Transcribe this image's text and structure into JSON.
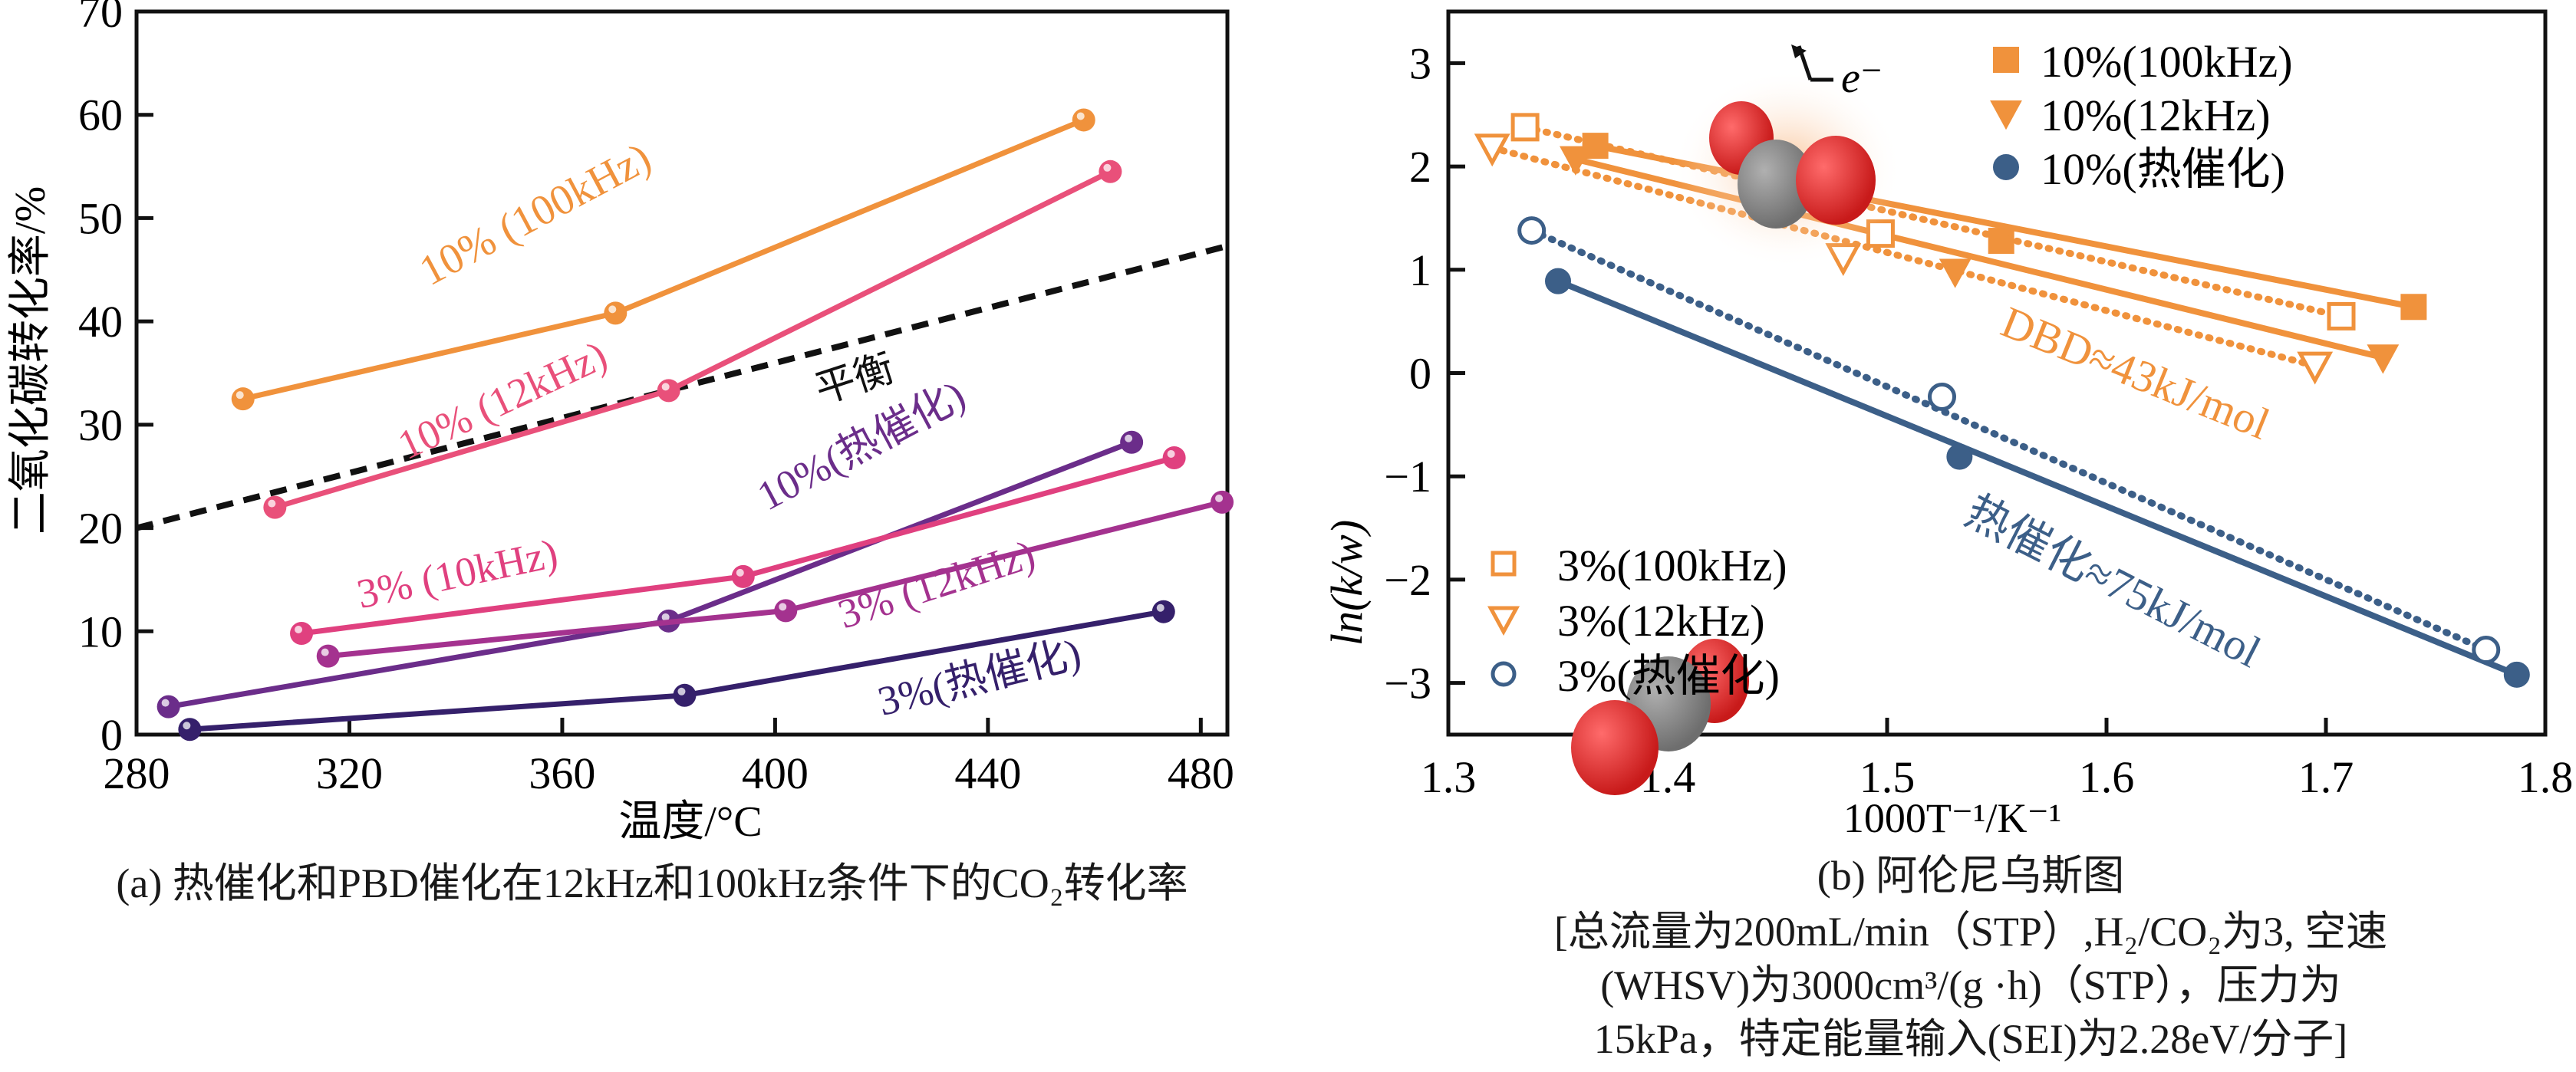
{
  "chart_data": [
    {
      "id": "a",
      "type": "line",
      "title": "",
      "caption": "(a) 热催化和PBD催化在12kHz和100kHz条件下的CO₂转化率",
      "xlabel": "温度/°C",
      "ylabel": "二氧化碳转化率/%",
      "xlim": [
        280,
        485
      ],
      "ylim": [
        0,
        70
      ],
      "xticks": [
        280,
        320,
        360,
        400,
        440,
        480
      ],
      "yticks": [
        0,
        10,
        20,
        30,
        40,
        50,
        60,
        70
      ],
      "grid": false,
      "series": [
        {
          "name": "10% (100kHz)",
          "color": "#f0923c",
          "x": [
            300,
            370,
            458
          ],
          "y": [
            32.5,
            40.8,
            59.5
          ]
        },
        {
          "name": "10% (12kHz)",
          "color": "#e9507a",
          "x": [
            306,
            380,
            463
          ],
          "y": [
            22,
            33.3,
            54.5
          ]
        },
        {
          "name": "10%(热催化)",
          "color": "#6b2d8a",
          "x": [
            286,
            380,
            467
          ],
          "y": [
            2.7,
            11,
            28.3
          ]
        },
        {
          "name": "3% (10kHz)",
          "color": "#e0407f",
          "x": [
            311,
            394,
            475
          ],
          "y": [
            9.8,
            15.3,
            26.8
          ]
        },
        {
          "name": "3% (12kHz)",
          "color": "#a4328f",
          "x": [
            316,
            402,
            484
          ],
          "y": [
            7.6,
            12,
            22.5
          ]
        },
        {
          "name": "3%(热催化)",
          "color": "#35206b",
          "x": [
            290,
            383,
            473
          ],
          "y": [
            0.5,
            3.8,
            11.9
          ]
        }
      ],
      "equilibrium": {
        "name": "平衡",
        "x": [
          280,
          485
        ],
        "y": [
          20,
          47.3
        ],
        "color": "#111111"
      },
      "annotations": [
        {
          "text": "10% (100kHz)",
          "series": 0
        },
        {
          "text": "10% (12kHz)",
          "series": 1
        },
        {
          "text": "10%(热催化)",
          "series": 2
        },
        {
          "text": "3% (10kHz)",
          "series": 3
        },
        {
          "text": "3% (12kHz)",
          "series": 4
        },
        {
          "text": "3%(热催化)",
          "series": 5
        },
        {
          "text": "平衡",
          "series": -1
        }
      ]
    },
    {
      "id": "b",
      "type": "scatter",
      "title": "",
      "caption": "(b) 阿伦尼乌斯图",
      "xlabel": "1000T⁻¹/K⁻¹",
      "ylabel": "ln(k/w)",
      "xlim": [
        1.3,
        1.8
      ],
      "ylim": [
        -3.5,
        3.5
      ],
      "xticks": [
        1.3,
        1.4,
        1.5,
        1.6,
        1.7,
        1.8
      ],
      "yticks": [
        -3,
        -2,
        -1,
        0,
        1,
        2,
        3
      ],
      "grid": false,
      "series": [
        {
          "name": "10%(100kHz)",
          "marker": "square-filled",
          "line": "solid",
          "color": "#f0923c",
          "x": [
            1.367,
            1.552,
            1.74
          ],
          "y": [
            2.2,
            1.28,
            0.64
          ]
        },
        {
          "name": "10%(12kHz)",
          "marker": "triangle-down-filled",
          "line": "solid",
          "color": "#f0923c",
          "x": [
            1.358,
            1.531,
            1.726
          ],
          "y": [
            2.07,
            0.98,
            0.15
          ]
        },
        {
          "name": "10%(热催化)",
          "marker": "circle-filled",
          "line": "solid",
          "color": "#3c5f88",
          "x": [
            1.35,
            1.533,
            1.787
          ],
          "y": [
            0.89,
            -0.81,
            -2.92
          ]
        },
        {
          "name": "3%(100kHz)",
          "marker": "square-open",
          "line": "dotted",
          "color": "#f0923c",
          "x": [
            1.335,
            1.497,
            1.707
          ],
          "y": [
            2.38,
            1.35,
            0.55
          ]
        },
        {
          "name": "3%(12kHz)",
          "marker": "triangle-down-open",
          "line": "dotted",
          "color": "#f0923c",
          "x": [
            1.32,
            1.48,
            1.695
          ],
          "y": [
            2.18,
            1.12,
            0.07
          ]
        },
        {
          "name": "3%(热催化)",
          "marker": "circle-open",
          "line": "dotted",
          "color": "#3c5f88",
          "x": [
            1.338,
            1.525,
            1.773
          ],
          "y": [
            1.38,
            -0.23,
            -2.68
          ]
        }
      ],
      "legend_top": [
        "10%(100kHz)",
        "10%(12kHz)",
        "10%(热催化)"
      ],
      "legend_bottom": [
        "3%(100kHz)",
        "3%(12kHz)",
        "3%(热催化)"
      ],
      "legend_placement": "top-right and bottom-left",
      "annotations": [
        {
          "text": "DBD≈43kJ/mol",
          "color": "#f0923c"
        },
        {
          "text": "热催化≈75kJ/mol",
          "color": "#3c5f88"
        },
        {
          "text": "e⁻",
          "color": "#1a1a1a"
        }
      ],
      "conditions": [
        "[总流量为200mL/min（STP）,H₂/CO₂为3, 空速",
        "(WHSV)为3000cm³/(g ·h)（STP），压力为",
        "15kPa，特定能量输入(SEI)为2.28eV/分子]"
      ]
    }
  ]
}
